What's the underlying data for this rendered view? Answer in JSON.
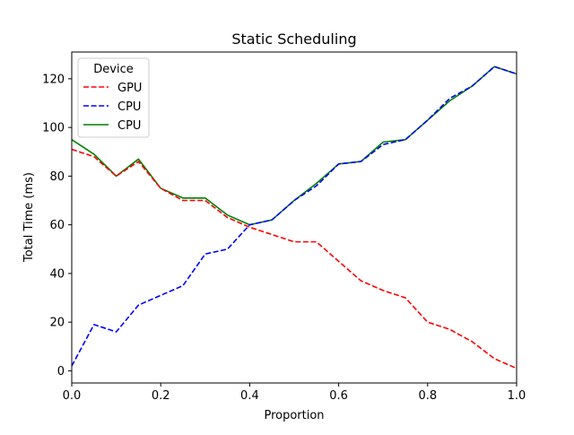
{
  "chart_data": {
    "type": "line",
    "title": "Static Scheduling",
    "xlabel": "Proportion",
    "ylabel": "Total Time (ms)",
    "xlim": [
      0.0,
      1.0
    ],
    "ylim": [
      -5,
      131
    ],
    "xticks": [
      0.0,
      0.2,
      0.4,
      0.6,
      0.8,
      1.0
    ],
    "xtick_labels": [
      "0.0",
      "0.2",
      "0.4",
      "0.6",
      "0.8",
      "1.0"
    ],
    "yticks": [
      0,
      20,
      40,
      60,
      80,
      100,
      120
    ],
    "ytick_labels": [
      "0",
      "20",
      "40",
      "60",
      "80",
      "100",
      "120"
    ],
    "grid": false,
    "legend": {
      "title": "Device",
      "placement": "top-left"
    },
    "x": [
      0.0,
      0.05,
      0.1,
      0.15,
      0.2,
      0.25,
      0.3,
      0.35,
      0.4,
      0.45,
      0.5,
      0.55,
      0.6,
      0.65,
      0.7,
      0.75,
      0.8,
      0.85,
      0.9,
      0.95,
      1.0
    ],
    "series": [
      {
        "name": "GPU",
        "style": "dashed",
        "color": "#ff0000",
        "values": [
          91,
          88,
          80,
          86,
          75,
          70,
          70,
          63,
          59,
          56,
          53,
          53,
          45,
          37,
          33,
          30,
          20,
          17,
          12,
          5,
          1
        ]
      },
      {
        "name": "CPU",
        "style": "dashed",
        "color": "#0000ff",
        "values": [
          2,
          19,
          16,
          27,
          31,
          35,
          48,
          50,
          60,
          62,
          70,
          76,
          85,
          86,
          93,
          95,
          103,
          112,
          117,
          125,
          122
        ]
      },
      {
        "name": "CPU",
        "style": "solid",
        "color": "#008000",
        "values": [
          95,
          89,
          80,
          87,
          75,
          71,
          71,
          64,
          60,
          62,
          70,
          77,
          85,
          86,
          94,
          95,
          103,
          111,
          117,
          125,
          122
        ]
      }
    ]
  }
}
